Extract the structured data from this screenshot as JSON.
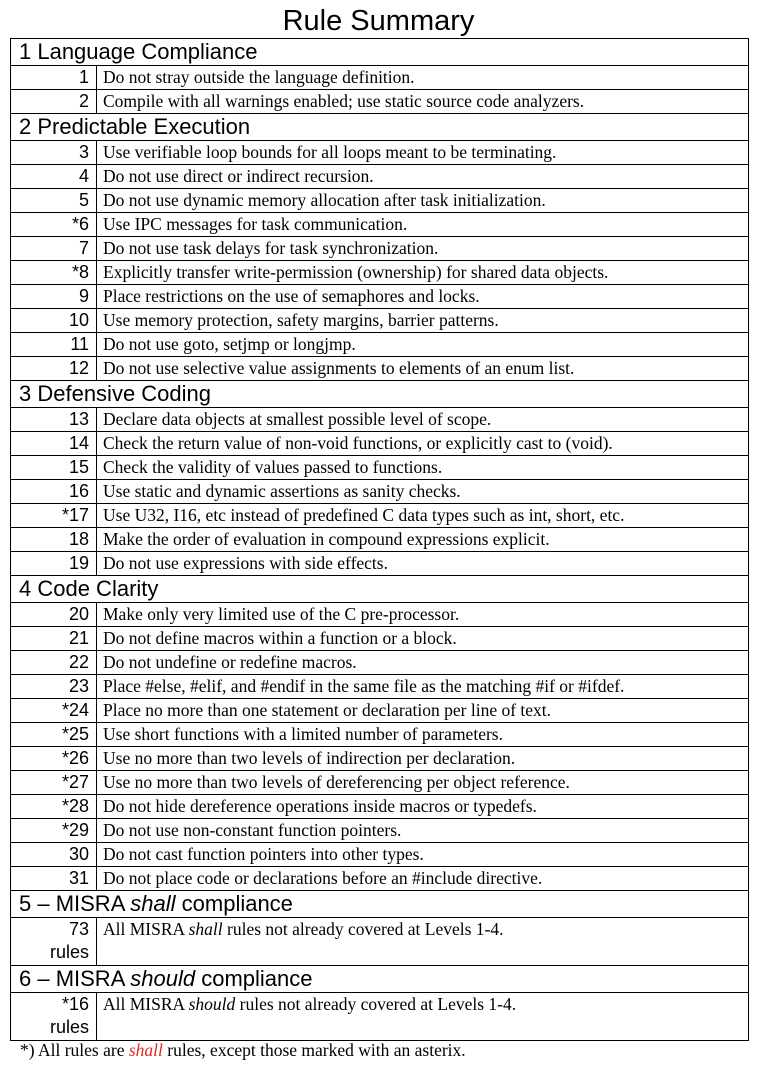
{
  "title": "Rule Summary",
  "sections": [
    {
      "title": "1 Language Compliance",
      "rules": [
        {
          "num": "1",
          "text": "Do not stray outside the language definition."
        },
        {
          "num": "2",
          "text": "Compile with all warnings enabled; use static source code analyzers."
        }
      ]
    },
    {
      "title": "2 Predictable Execution",
      "rules": [
        {
          "num": "3",
          "text": "Use verifiable loop bounds for all loops meant to be terminating."
        },
        {
          "num": "4",
          "text": "Do not use direct or indirect recursion."
        },
        {
          "num": "5",
          "text": "Do not use dynamic memory allocation after task initialization."
        },
        {
          "num": "*6",
          "text": "Use IPC messages for task communication."
        },
        {
          "num": "7",
          "text": "Do not use task delays for task synchronization."
        },
        {
          "num": "*8",
          "text": "Explicitly transfer write-permission (ownership) for shared data objects."
        },
        {
          "num": "9",
          "text": "Place restrictions on the use of semaphores and locks."
        },
        {
          "num": "10",
          "text": "Use memory protection, safety margins, barrier patterns."
        },
        {
          "num": "11",
          "text": "Do not use goto, setjmp or longjmp."
        },
        {
          "num": "12",
          "text": "Do not use selective value assignments to elements of an enum list."
        }
      ]
    },
    {
      "title": "3 Defensive Coding",
      "rules": [
        {
          "num": "13",
          "text": "Declare data objects at smallest possible level of scope."
        },
        {
          "num": "14",
          "text": "Check the return value of non-void functions, or explicitly cast to (void)."
        },
        {
          "num": "15",
          "text": "Check the validity of values passed to functions."
        },
        {
          "num": "16",
          "text": "Use static and dynamic assertions as sanity checks."
        },
        {
          "num": "*17",
          "text": "Use U32, I16, etc instead of predefined C data types such as int, short, etc."
        },
        {
          "num": "18",
          "text": "Make the order of evaluation in compound expressions explicit."
        },
        {
          "num": "19",
          "text": "Do not use expressions with side effects."
        }
      ]
    },
    {
      "title": "4 Code Clarity",
      "rules": [
        {
          "num": "20",
          "text": "Make only very limited use of the C pre-processor."
        },
        {
          "num": "21",
          "text": "Do not define macros within a function or a block."
        },
        {
          "num": "22",
          "text": "Do not undefine or redefine macros."
        },
        {
          "num": "23",
          "text": "Place #else, #elif, and #endif in the same file as the matching #if or #ifdef."
        },
        {
          "num": "*24",
          "text": "Place no more than one statement or declaration per line of text."
        },
        {
          "num": "*25",
          "text": "Use short functions with a limited number of parameters."
        },
        {
          "num": "*26",
          "text": "Use no more than two levels of indirection per declaration."
        },
        {
          "num": "*27",
          "text": "Use no more than two levels of dereferencing per object reference."
        },
        {
          "num": "*28",
          "text": "Do not hide dereference operations inside macros or typedefs."
        },
        {
          "num": "*29",
          "text": "Do not use non-constant function pointers."
        },
        {
          "num": "30",
          "text": "Do not cast function pointers into other types."
        },
        {
          "num": "31",
          "text": "Do not place code or declarations before an #include directive."
        }
      ]
    }
  ],
  "misra": [
    {
      "title_pre": "5 – MISRA ",
      "title_em": "shall",
      "title_post": " compliance",
      "num": "73",
      "num_unit": "rules",
      "text_pre": "All MISRA ",
      "text_em": "shall",
      "text_post": " rules not already covered at Levels 1-4."
    },
    {
      "title_pre": "6 – MISRA ",
      "title_em": "should",
      "title_post": " compliance",
      "num": "*16",
      "num_unit": "rules",
      "text_pre": "All MISRA ",
      "text_em": "should",
      "text_post": " rules not already covered at Levels 1-4."
    }
  ],
  "footnote": {
    "pre": "*) All rules are ",
    "em": "shall",
    "post": " rules, except those marked with an asterix."
  },
  "colors": {
    "highlight": "#e8262a"
  }
}
